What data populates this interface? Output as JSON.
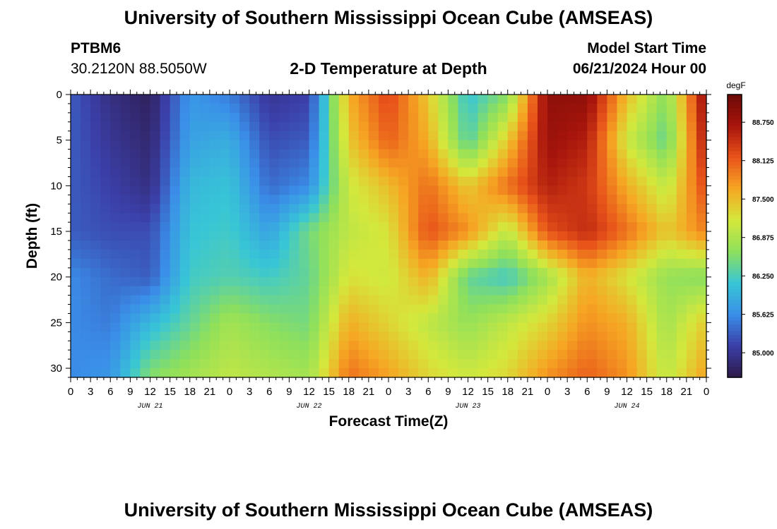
{
  "header": {
    "title": "University of Southern Mississippi Ocean Cube (AMSEAS)",
    "station": "PTBM6",
    "coords": "30.2120N  88.5050W",
    "subtitle": "2-D Temperature at Depth",
    "model_start_label": "Model Start Time",
    "model_start_value": "06/21/2024 Hour 00"
  },
  "footer": {
    "title": "University of Southern Mississippi Ocean Cube (AMSEAS)"
  },
  "chart_data": {
    "type": "heatmap",
    "title": "2-D Temperature at Depth",
    "xlabel": "Forecast Time(Z)",
    "ylabel": "Depth (ft)",
    "x_ticks": [
      "0",
      "3",
      "6",
      "9",
      "12",
      "15",
      "18",
      "21",
      "0",
      "3",
      "6",
      "9",
      "12",
      "15",
      "18",
      "21",
      "0",
      "3",
      "6",
      "9",
      "12",
      "15",
      "18",
      "21",
      "0",
      "3",
      "6",
      "9",
      "12",
      "15",
      "18",
      "21",
      "0"
    ],
    "day_labels": [
      "JUN 21",
      "JUN 22",
      "JUN 23",
      "JUN 24"
    ],
    "xlim_hours": [
      0,
      96
    ],
    "y_ticks": [
      0,
      5,
      10,
      15,
      20,
      25,
      30
    ],
    "ylim": [
      0,
      31
    ],
    "colorbar": {
      "unit": "degF",
      "ticks": [
        "85.000",
        "85.625",
        "86.250",
        "86.875",
        "87.500",
        "88.125",
        "88.750"
      ],
      "range": [
        84.6,
        89.2
      ],
      "colors": [
        "#2d1a4a",
        "#3b3fa8",
        "#3a8fe8",
        "#38c6d6",
        "#8ee05c",
        "#d4e83c",
        "#f6a623",
        "#e8531a",
        "#a8150c",
        "#6b0a06"
      ]
    },
    "time_hours": [
      0,
      6,
      12,
      18,
      24,
      30,
      36,
      42,
      48,
      54,
      60,
      66,
      72,
      78,
      84,
      90,
      96
    ],
    "depths_ft": [
      0,
      5,
      10,
      15,
      20,
      25,
      31
    ],
    "temperature_grid": [
      [
        85.3,
        84.9,
        84.7,
        85.7,
        85.5,
        85.0,
        85.1,
        87.6,
        88.3,
        87.4,
        86.1,
        86.6,
        88.9,
        88.9,
        87.5,
        86.6,
        88.9
      ],
      [
        85.3,
        85.0,
        84.8,
        85.8,
        85.9,
        85.2,
        85.3,
        87.4,
        88.1,
        87.6,
        86.3,
        87.4,
        88.8,
        88.6,
        87.1,
        86.4,
        88.7
      ],
      [
        85.3,
        85.1,
        84.9,
        86.0,
        86.1,
        85.4,
        85.6,
        87.1,
        87.5,
        88.0,
        87.4,
        88.0,
        88.6,
        88.4,
        87.6,
        87.0,
        88.3
      ],
      [
        85.3,
        85.2,
        85.2,
        86.1,
        86.2,
        85.8,
        86.5,
        87.0,
        87.2,
        88.2,
        87.8,
        87.0,
        88.2,
        88.5,
        88.0,
        87.4,
        87.9
      ],
      [
        85.6,
        85.4,
        85.3,
        86.2,
        86.3,
        86.2,
        86.4,
        87.2,
        87.1,
        87.6,
        86.4,
        86.2,
        86.8,
        87.6,
        87.2,
        86.7,
        86.6
      ],
      [
        85.6,
        85.5,
        86.0,
        86.4,
        86.8,
        86.6,
        86.5,
        87.6,
        87.3,
        87.0,
        86.7,
        87.0,
        87.3,
        87.8,
        87.6,
        86.8,
        87.4
      ],
      [
        85.6,
        85.7,
        86.6,
        86.8,
        87.0,
        86.9,
        86.8,
        88.0,
        87.7,
        87.3,
        87.1,
        87.3,
        87.8,
        88.1,
        87.8,
        87.0,
        87.7
      ]
    ]
  }
}
